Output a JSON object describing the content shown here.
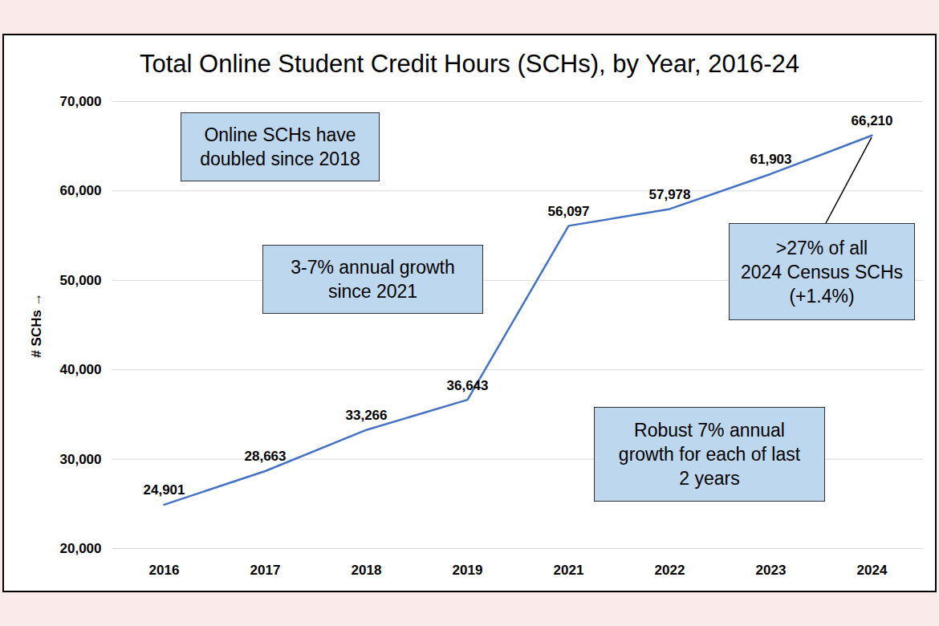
{
  "chart_data": {
    "type": "line",
    "title": "Total Online Student Credit Hours (SCHs), by Year, 2016-24",
    "y_label": "# SCHs",
    "categories": [
      "2016",
      "2017",
      "2018",
      "2019",
      "2021",
      "2022",
      "2023",
      "2024"
    ],
    "values": [
      24901,
      28663,
      33266,
      36643,
      56097,
      57978,
      61903,
      66210
    ],
    "value_labels": [
      "24,901",
      "28,663",
      "33,266",
      "36,643",
      "56,097",
      "57,978",
      "61,903",
      "66,210"
    ],
    "color": "#4472c4",
    "ylim": [
      20000,
      70000
    ],
    "yticks": [
      {
        "value": 20000,
        "label": "20,000"
      },
      {
        "value": 30000,
        "label": "30,000"
      },
      {
        "value": 40000,
        "label": "40,000"
      },
      {
        "value": 50000,
        "label": "50,000"
      },
      {
        "value": 60000,
        "label": "60,000"
      },
      {
        "value": 70000,
        "label": "70,000"
      }
    ],
    "grid": true,
    "data_labels": true,
    "annotations": [
      {
        "lines": [
          "Online SCHs have",
          "doubled since 2018"
        ]
      },
      {
        "lines": [
          "3-7% annual growth",
          "since 2021"
        ]
      },
      {
        "lines": [
          ">27% of all",
          "2024 Census SCHs",
          "(+1.4%)"
        ]
      },
      {
        "lines": [
          "Robust 7% annual",
          "growth for each of last",
          "2 years"
        ]
      }
    ]
  }
}
